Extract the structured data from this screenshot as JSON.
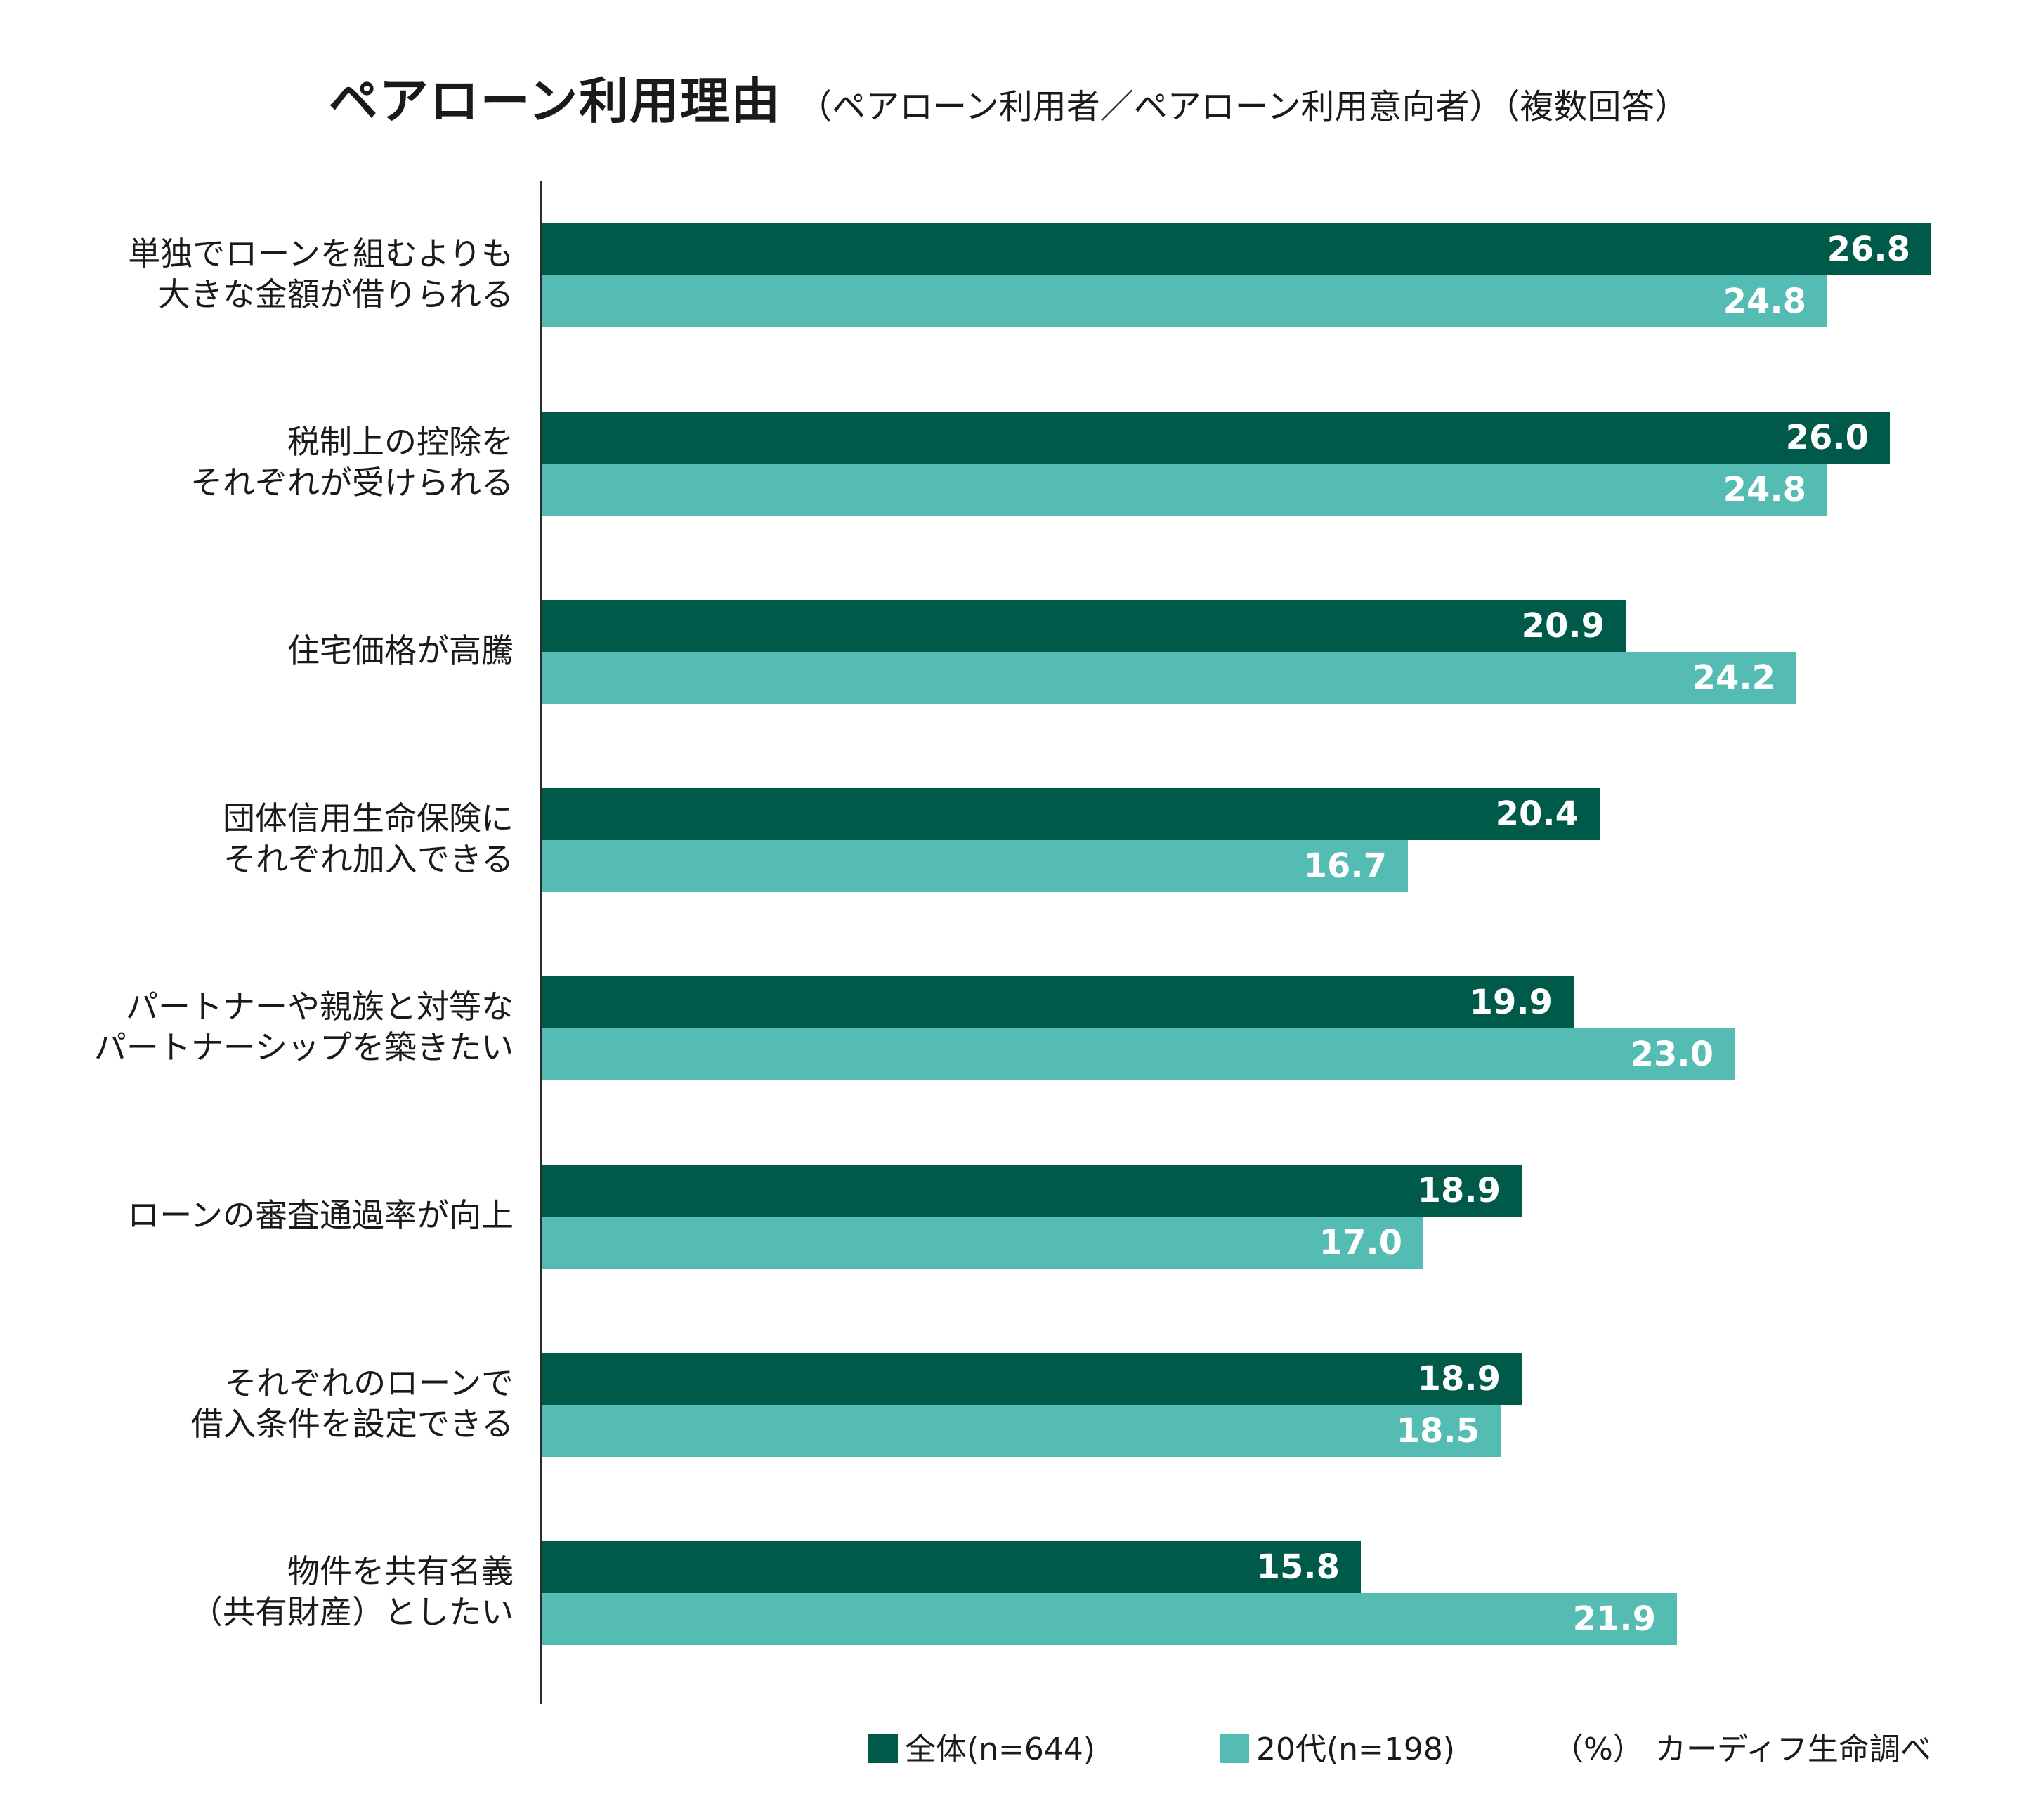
{
  "title": "ペアローン利用理由",
  "subtitle": "（ペアローン利用者／ペアローン利用意向者）（複数回答）",
  "chart_data": {
    "type": "bar",
    "orientation": "horizontal",
    "categories": [
      [
        "単独でローンを組むよりも",
        "大きな金額が借りられる"
      ],
      [
        "税制上の控除を",
        "それぞれが受けられる"
      ],
      [
        "住宅価格が高騰"
      ],
      [
        "団体信用生命保険に",
        "それぞれ加入できる"
      ],
      [
        "パートナーや親族と対等な",
        "パートナーシップを築きたい"
      ],
      [
        "ローンの審査通過率が向上"
      ],
      [
        "それぞれのローンで",
        "借入条件を設定できる"
      ],
      [
        "物件を共有名義",
        "（共有財産）としたい"
      ]
    ],
    "series": [
      {
        "name": "全体(n=644)",
        "color": "#005a49",
        "values": [
          26.8,
          26.0,
          20.9,
          20.4,
          19.9,
          18.9,
          18.9,
          15.8
        ]
      },
      {
        "name": "20代(n=198)",
        "color": "#54bcb3",
        "values": [
          24.8,
          24.8,
          24.2,
          16.7,
          23.0,
          17.0,
          18.5,
          21.9
        ]
      }
    ],
    "xlim": [
      0,
      26.8
    ],
    "grid": false,
    "legend_position": "bottom",
    "unit_note": "（%）",
    "source": "カーディフ生命調べ"
  }
}
